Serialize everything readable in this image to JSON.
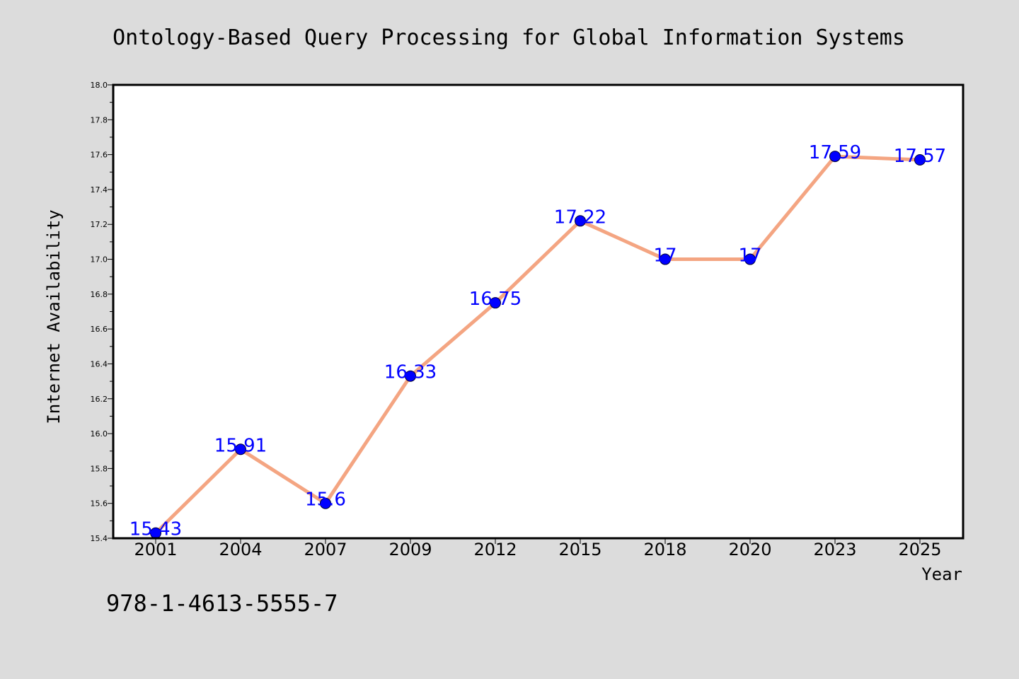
{
  "chart_data": {
    "type": "line",
    "title": "Ontology-Based Query Processing for Global Information Systems",
    "xlabel": "Year",
    "ylabel": "Internet Availability",
    "categories": [
      "2001",
      "2004",
      "2007",
      "2009",
      "2012",
      "2015",
      "2018",
      "2020",
      "2023",
      "2025"
    ],
    "series": [
      {
        "values": [
          15.43,
          15.91,
          15.6,
          16.33,
          16.75,
          17.22,
          17,
          17,
          17.59,
          17.57
        ],
        "labels": [
          "15.43",
          "15.91",
          "15.6",
          "16.33",
          "16.75",
          "17.22",
          "17",
          "17",
          "17.59",
          "17.57"
        ]
      }
    ],
    "ylim": [
      15.4,
      18.0
    ],
    "yticks": [
      "15.4",
      "15.6",
      "15.8",
      "16.0",
      "16.2",
      "16.4",
      "16.6",
      "16.8",
      "17.0",
      "17.2",
      "17.4",
      "17.6",
      "17.8",
      "18.0"
    ],
    "grid": false,
    "legend": "none"
  },
  "footer_text": "978-1-4613-5555-7",
  "colors": {
    "background": "#dcdcdc",
    "plot_background": "#ffffff",
    "line": "#f4a582",
    "marker": "#0000ff",
    "data_label": "#0000ff"
  }
}
